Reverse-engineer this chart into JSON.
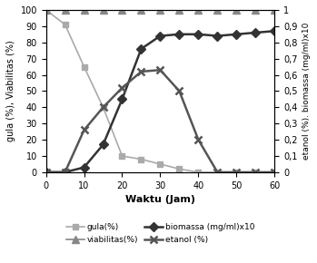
{
  "xlabel": "Waktu (Jam)",
  "ylabel_left": "gula (%), Viabilitas (%)",
  "ylabel_right": "etanol (%). biomassa (mg/ml)x10",
  "x_ticks": [
    0,
    10,
    20,
    30,
    40,
    50,
    60
  ],
  "xlim": [
    0,
    60
  ],
  "ylim_left": [
    0,
    100
  ],
  "ylim_right": [
    0,
    1
  ],
  "y_ticks_left": [
    0,
    10,
    20,
    30,
    40,
    50,
    60,
    70,
    80,
    90,
    100
  ],
  "y_ticks_right": [
    0,
    0.1,
    0.2,
    0.3,
    0.4,
    0.5,
    0.6,
    0.7,
    0.8,
    0.9,
    1
  ],
  "gula": {
    "x": [
      0,
      5,
      10,
      15,
      20,
      25,
      30,
      35,
      40,
      45,
      50,
      55,
      60
    ],
    "y": [
      100,
      91,
      65,
      40,
      10,
      8,
      5,
      2,
      0,
      0,
      0,
      0,
      0
    ],
    "color": "#aaaaaa",
    "label": "gula(%)"
  },
  "viabilitas": {
    "x": [
      0,
      5,
      10,
      15,
      20,
      25,
      30,
      35,
      40,
      45,
      50,
      55,
      60
    ],
    "y": [
      100,
      100,
      100,
      100,
      100,
      100,
      100,
      100,
      100,
      100,
      100,
      100,
      100
    ],
    "color": "#888888",
    "label": "viabilitas(%)"
  },
  "biomassa": {
    "x": [
      0,
      5,
      10,
      15,
      20,
      25,
      30,
      35,
      40,
      45,
      50,
      55,
      60
    ],
    "y": [
      0,
      0,
      3,
      17,
      45,
      76,
      84,
      85,
      85,
      84,
      85,
      86,
      87
    ],
    "color": "#333333",
    "label": "biomassa (mg/ml)x10"
  },
  "etanol": {
    "x": [
      0,
      5,
      10,
      15,
      20,
      25,
      30,
      35,
      40,
      45,
      50,
      55,
      60
    ],
    "y": [
      0,
      0,
      26,
      40,
      52,
      62,
      63,
      50,
      20,
      0,
      0,
      0,
      0
    ],
    "color": "#555555",
    "label": "etanol (%)"
  },
  "bg_color": "#ffffff"
}
